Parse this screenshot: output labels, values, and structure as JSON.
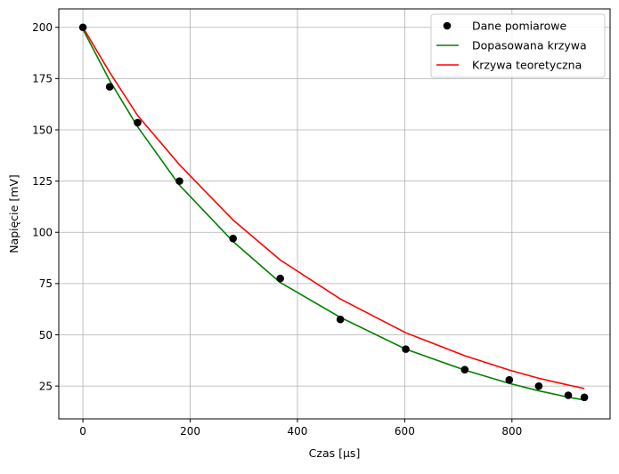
{
  "chart_data": {
    "type": "line",
    "xlabel": "Czas [μs]",
    "ylabel": "Napięcie [mV]",
    "xlim": [
      -45,
      983
    ],
    "ylim": [
      9,
      209
    ],
    "xticks": [
      0,
      200,
      400,
      600,
      800
    ],
    "yticks": [
      25,
      50,
      75,
      100,
      125,
      150,
      175,
      200
    ],
    "grid": true,
    "legend_position": "top-right",
    "series": [
      {
        "name": "Dane pomiarowe",
        "kind": "scatter",
        "color": "#000000",
        "x": [
          0,
          50,
          102,
          180,
          280,
          368,
          480,
          602,
          712,
          795,
          850,
          905,
          935
        ],
        "y": [
          200,
          171,
          153.5,
          125,
          97,
          77.5,
          57.5,
          43,
          33,
          28,
          25,
          20.5,
          19.5
        ]
      },
      {
        "name": "Dopasowana krzywa",
        "kind": "line",
        "color": "#008000",
        "x": [
          0,
          50,
          102,
          180,
          280,
          368,
          480,
          602,
          712,
          795,
          850,
          905,
          935
        ],
        "y": [
          199,
          174,
          151.5,
          123,
          95.5,
          75.5,
          58.5,
          43,
          32.8,
          26.3,
          22.7,
          19.6,
          18.2
        ]
      },
      {
        "name": "Krzywa teoretyczna",
        "kind": "line",
        "color": "#ff0000",
        "x": [
          0,
          50,
          102,
          180,
          280,
          368,
          480,
          602,
          712,
          795,
          850,
          905,
          935
        ],
        "y": [
          200,
          178,
          157,
          133,
          106,
          86.5,
          67.5,
          51,
          39.8,
          32.8,
          28.8,
          25.5,
          23.8
        ]
      }
    ]
  }
}
